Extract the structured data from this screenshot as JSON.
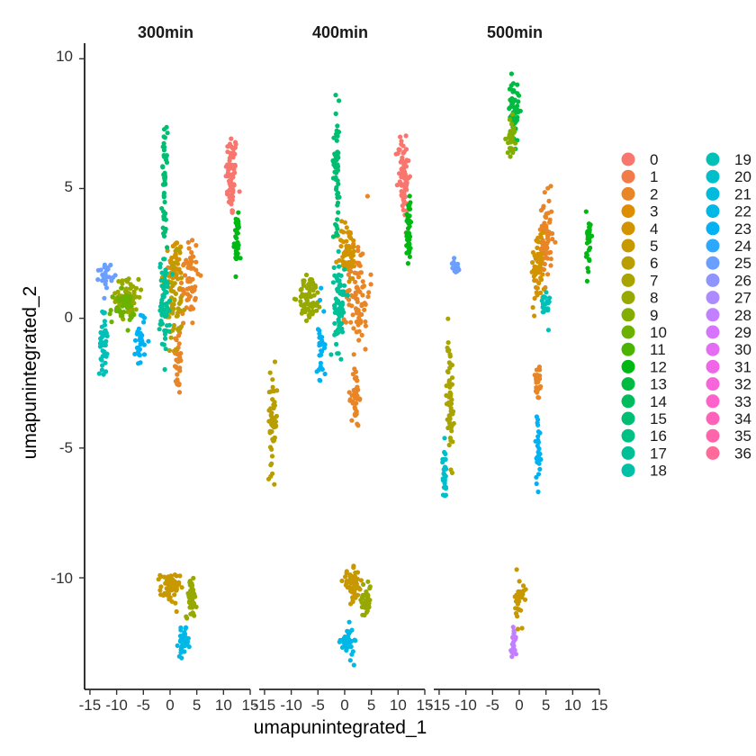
{
  "chart_data": {
    "type": "scatter",
    "facets": [
      "300min",
      "400min",
      "500min"
    ],
    "xlabel": "umapunintegrated_1",
    "ylabel": "umapunintegrated_2",
    "xlim": [
      -16,
      15
    ],
    "ylim": [
      -14.3,
      10.6
    ],
    "x_ticks": [
      -15,
      -10,
      -5,
      0,
      5,
      10,
      15
    ],
    "x_tick_labels": [
      "-15",
      "-10",
      "-5",
      "0",
      "5",
      "10",
      "15"
    ],
    "y_ticks": [
      10,
      5,
      0,
      -5,
      -10
    ],
    "y_tick_labels": [
      "10",
      "5",
      "0",
      "-5",
      "-10"
    ],
    "legend": {
      "position": "right",
      "labels": [
        "0",
        "1",
        "2",
        "3",
        "4",
        "5",
        "6",
        "7",
        "8",
        "9",
        "10",
        "11",
        "12",
        "13",
        "14",
        "15",
        "16",
        "17",
        "18",
        "19",
        "20",
        "21",
        "22",
        "23",
        "24",
        "25",
        "26",
        "27",
        "28",
        "29",
        "30",
        "31",
        "32",
        "33",
        "34",
        "35",
        "36"
      ],
      "colors": [
        "#F8766D",
        "#F17C4A",
        "#E88526",
        "#DE8C00",
        "#D39200",
        "#C79800",
        "#B89E00",
        "#A9A400",
        "#97A900",
        "#83AD00",
        "#6BB100",
        "#4BB400",
        "#00B813",
        "#00BA42",
        "#00BC5D",
        "#00BE71",
        "#00C084",
        "#00C097",
        "#00C1A8",
        "#00C0B8",
        "#00BECA",
        "#00BBDB",
        "#00B8E7",
        "#00B2F3",
        "#2DA8FF",
        "#6A9EFF",
        "#8F95FF",
        "#AD8AFF",
        "#C27FFF",
        "#D774FD",
        "#E56DF3",
        "#F166E8",
        "#F864DA",
        "#FE61CB",
        "#FF62BB",
        "#FF65AA",
        "#FF6A98"
      ]
    },
    "clusters": [
      {
        "facet": "300min",
        "cluster": "0",
        "center": [
          11.5,
          5.5
        ],
        "spread": [
          0.9,
          1.4
        ],
        "n": 70
      },
      {
        "facet": "300min",
        "cluster": "2",
        "center": [
          3.5,
          1.5
        ],
        "spread": [
          1.6,
          1.6
        ],
        "n": 60
      },
      {
        "facet": "300min",
        "cluster": "2",
        "center": [
          1.5,
          -1.5
        ],
        "spread": [
          0.6,
          1.3
        ],
        "n": 40
      },
      {
        "facet": "300min",
        "cluster": "4",
        "center": [
          1.0,
          2.0
        ],
        "spread": [
          1.0,
          1.0
        ],
        "n": 50
      },
      {
        "facet": "300min",
        "cluster": "6",
        "center": [
          0.5,
          0.5
        ],
        "spread": [
          1.5,
          1.5
        ],
        "n": 50
      },
      {
        "facet": "300min",
        "cluster": "8",
        "center": [
          -8.0,
          0.8
        ],
        "spread": [
          1.8,
          0.6
        ],
        "n": 80
      },
      {
        "facet": "300min",
        "cluster": "10",
        "center": [
          -9.0,
          0.4
        ],
        "spread": [
          2.0,
          0.5
        ],
        "n": 40
      },
      {
        "facet": "300min",
        "cluster": "12",
        "center": [
          12.5,
          3.0
        ],
        "spread": [
          0.4,
          1.0
        ],
        "n": 40
      },
      {
        "facet": "300min",
        "cluster": "15",
        "center": [
          -1.0,
          5.0
        ],
        "spread": [
          0.4,
          1.8
        ],
        "n": 50
      },
      {
        "facet": "300min",
        "cluster": "17",
        "center": [
          -1.0,
          0.5
        ],
        "spread": [
          0.8,
          1.5
        ],
        "n": 70
      },
      {
        "facet": "300min",
        "cluster": "19",
        "center": [
          -12.5,
          -1.0
        ],
        "spread": [
          0.6,
          1.0
        ],
        "n": 40
      },
      {
        "facet": "300min",
        "cluster": "23",
        "center": [
          -5.5,
          -0.8
        ],
        "spread": [
          0.8,
          1.0
        ],
        "n": 30
      },
      {
        "facet": "300min",
        "cluster": "25",
        "center": [
          -12.0,
          1.7
        ],
        "spread": [
          1.0,
          0.4
        ],
        "n": 25
      },
      {
        "facet": "300min",
        "cluster": "5",
        "center": [
          0.0,
          -10.4
        ],
        "spread": [
          1.5,
          0.5
        ],
        "n": 60
      },
      {
        "facet": "300min",
        "cluster": "8",
        "center": [
          4.0,
          -10.8
        ],
        "spread": [
          0.8,
          0.6
        ],
        "n": 50
      },
      {
        "facet": "300min",
        "cluster": "22",
        "center": [
          2.5,
          -12.5
        ],
        "spread": [
          0.8,
          0.4
        ],
        "n": 40
      },
      {
        "facet": "400min",
        "cluster": "0",
        "center": [
          11.0,
          5.5
        ],
        "spread": [
          0.9,
          1.4
        ],
        "n": 70
      },
      {
        "facet": "400min",
        "cluster": "2",
        "center": [
          2.5,
          1.0
        ],
        "spread": [
          1.8,
          1.8
        ],
        "n": 80
      },
      {
        "facet": "400min",
        "cluster": "2",
        "center": [
          2.0,
          -3.0
        ],
        "spread": [
          0.6,
          1.0
        ],
        "n": 40
      },
      {
        "facet": "400min",
        "cluster": "4",
        "center": [
          0.5,
          2.5
        ],
        "spread": [
          1.5,
          1.0
        ],
        "n": 60
      },
      {
        "facet": "400min",
        "cluster": "8",
        "center": [
          -6.5,
          0.8
        ],
        "spread": [
          1.8,
          0.7
        ],
        "n": 70
      },
      {
        "facet": "400min",
        "cluster": "12",
        "center": [
          12.0,
          3.5
        ],
        "spread": [
          0.4,
          1.2
        ],
        "n": 40
      },
      {
        "facet": "400min",
        "cluster": "15",
        "center": [
          -1.5,
          6.0
        ],
        "spread": [
          0.5,
          2.0
        ],
        "n": 60
      },
      {
        "facet": "400min",
        "cluster": "17",
        "center": [
          -1.0,
          0.5
        ],
        "spread": [
          0.8,
          1.5
        ],
        "n": 70
      },
      {
        "facet": "400min",
        "cluster": "6",
        "center": [
          -13.5,
          -4.0
        ],
        "spread": [
          0.7,
          1.5
        ],
        "n": 50
      },
      {
        "facet": "400min",
        "cluster": "23",
        "center": [
          -4.5,
          -1.0
        ],
        "spread": [
          0.6,
          1.5
        ],
        "n": 30
      },
      {
        "facet": "400min",
        "cluster": "5",
        "center": [
          1.5,
          -10.3
        ],
        "spread": [
          1.5,
          0.5
        ],
        "n": 60
      },
      {
        "facet": "400min",
        "cluster": "8",
        "center": [
          4.0,
          -10.8
        ],
        "spread": [
          0.8,
          0.6
        ],
        "n": 40
      },
      {
        "facet": "400min",
        "cluster": "22",
        "center": [
          0.5,
          -12.5
        ],
        "spread": [
          1.0,
          0.5
        ],
        "n": 40
      },
      {
        "facet": "500min",
        "cluster": "2",
        "center": [
          5.0,
          3.0
        ],
        "spread": [
          1.0,
          1.4
        ],
        "n": 70
      },
      {
        "facet": "500min",
        "cluster": "4",
        "center": [
          3.5,
          2.0
        ],
        "spread": [
          1.0,
          1.2
        ],
        "n": 50
      },
      {
        "facet": "500min",
        "cluster": "13",
        "center": [
          -1.0,
          8.0
        ],
        "spread": [
          0.8,
          1.0
        ],
        "n": 60
      },
      {
        "facet": "500min",
        "cluster": "9",
        "center": [
          -1.5,
          7.0
        ],
        "spread": [
          0.6,
          0.6
        ],
        "n": 30
      },
      {
        "facet": "500min",
        "cluster": "7",
        "center": [
          -13.0,
          -3.0
        ],
        "spread": [
          0.5,
          2.0
        ],
        "n": 60
      },
      {
        "facet": "500min",
        "cluster": "20",
        "center": [
          -14.0,
          -6.0
        ],
        "spread": [
          0.3,
          0.8
        ],
        "n": 30
      },
      {
        "facet": "500min",
        "cluster": "23",
        "center": [
          3.5,
          -5.0
        ],
        "spread": [
          0.4,
          1.2
        ],
        "n": 30
      },
      {
        "facet": "500min",
        "cluster": "2",
        "center": [
          3.5,
          -2.5
        ],
        "spread": [
          0.5,
          0.8
        ],
        "n": 30
      },
      {
        "facet": "500min",
        "cluster": "19",
        "center": [
          5.0,
          0.5
        ],
        "spread": [
          0.6,
          0.6
        ],
        "n": 20
      },
      {
        "facet": "500min",
        "cluster": "12",
        "center": [
          13.0,
          3.0
        ],
        "spread": [
          0.4,
          1.0
        ],
        "n": 30
      },
      {
        "facet": "500min",
        "cluster": "5",
        "center": [
          0.0,
          -11.0
        ],
        "spread": [
          0.7,
          0.8
        ],
        "n": 30
      },
      {
        "facet": "500min",
        "cluster": "28",
        "center": [
          -1.0,
          -12.5
        ],
        "spread": [
          0.4,
          0.6
        ],
        "n": 25
      },
      {
        "facet": "500min",
        "cluster": "25",
        "center": [
          -12.0,
          2.0
        ],
        "spread": [
          0.5,
          0.3
        ],
        "n": 15
      }
    ]
  }
}
